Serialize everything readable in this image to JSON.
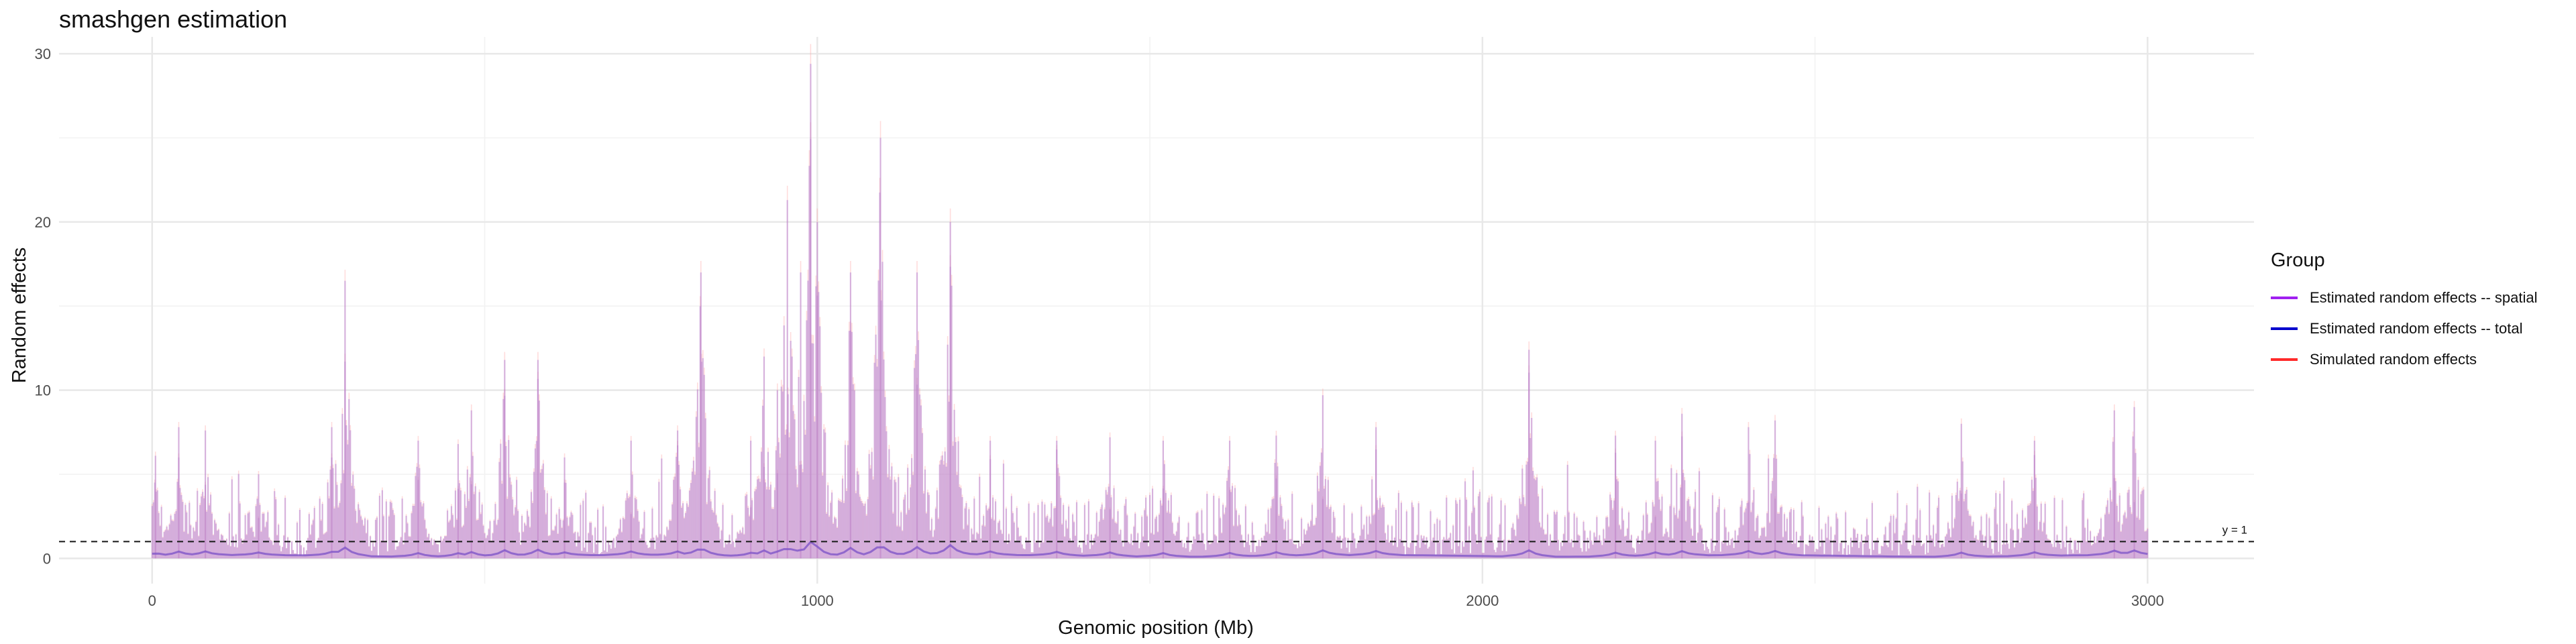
{
  "chart_data": {
    "type": "line",
    "title": "smashgen estimation",
    "xlabel": "Genomic position (Mb)",
    "ylabel": "Random effects",
    "xlim": [
      -140,
      3160
    ],
    "ylim": [
      -1.5,
      31
    ],
    "x_ticks": [
      0,
      1000,
      2000,
      3000
    ],
    "y_ticks": [
      0,
      10,
      20,
      30
    ],
    "grid": true,
    "legend_placement": "right",
    "legend_title": "Group",
    "series": [
      {
        "name": "Estimated random effects -- spatial",
        "color": "#a020f0"
      },
      {
        "name": "Estimated random effects -- total",
        "color": "#0000cd"
      },
      {
        "name": "Simulated random effects",
        "color": "#ff2a2a"
      }
    ],
    "reference_line": {
      "y": 1,
      "label": "y = 1",
      "style": "dashed"
    },
    "peaks": [
      {
        "x": 5,
        "y": 6.1
      },
      {
        "x": 40,
        "y": 7.8
      },
      {
        "x": 80,
        "y": 7.6
      },
      {
        "x": 160,
        "y": 5.0
      },
      {
        "x": 270,
        "y": 7.8
      },
      {
        "x": 290,
        "y": 16.5
      },
      {
        "x": 400,
        "y": 7.0
      },
      {
        "x": 460,
        "y": 6.8
      },
      {
        "x": 480,
        "y": 8.8
      },
      {
        "x": 530,
        "y": 11.8
      },
      {
        "x": 580,
        "y": 11.8
      },
      {
        "x": 620,
        "y": 6.0
      },
      {
        "x": 720,
        "y": 7.0
      },
      {
        "x": 790,
        "y": 7.6
      },
      {
        "x": 825,
        "y": 17.0
      },
      {
        "x": 900,
        "y": 7.0
      },
      {
        "x": 920,
        "y": 12.0
      },
      {
        "x": 940,
        "y": 10.0
      },
      {
        "x": 955,
        "y": 21.3
      },
      {
        "x": 975,
        "y": 17.0
      },
      {
        "x": 990,
        "y": 29.4
      },
      {
        "x": 1000,
        "y": 20.0
      },
      {
        "x": 1050,
        "y": 17.0
      },
      {
        "x": 1095,
        "y": 25.0
      },
      {
        "x": 1150,
        "y": 17.0
      },
      {
        "x": 1200,
        "y": 20.0
      },
      {
        "x": 1260,
        "y": 7.0
      },
      {
        "x": 1360,
        "y": 7.0
      },
      {
        "x": 1440,
        "y": 7.2
      },
      {
        "x": 1520,
        "y": 7.0
      },
      {
        "x": 1620,
        "y": 7.0
      },
      {
        "x": 1690,
        "y": 7.3
      },
      {
        "x": 1760,
        "y": 9.7
      },
      {
        "x": 1840,
        "y": 7.8
      },
      {
        "x": 2070,
        "y": 12.4
      },
      {
        "x": 2200,
        "y": 7.3
      },
      {
        "x": 2260,
        "y": 7.0
      },
      {
        "x": 2300,
        "y": 8.6
      },
      {
        "x": 2400,
        "y": 7.8
      },
      {
        "x": 2440,
        "y": 8.2
      },
      {
        "x": 2720,
        "y": 8.0
      },
      {
        "x": 2830,
        "y": 7.0
      },
      {
        "x": 2950,
        "y": 8.8
      },
      {
        "x": 2980,
        "y": 9.0
      }
    ]
  }
}
